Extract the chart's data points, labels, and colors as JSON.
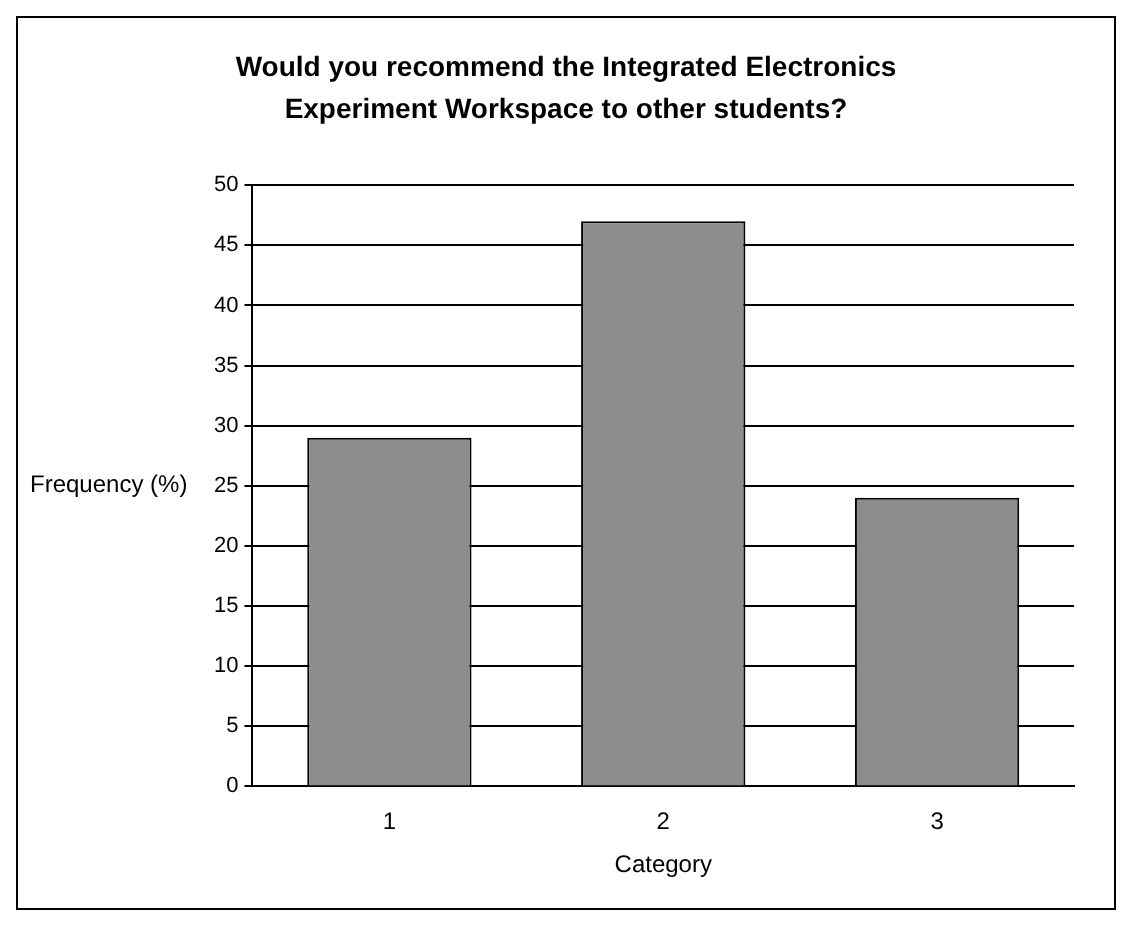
{
  "chart_data": {
    "type": "bar",
    "title": "Would you recommend the Integrated Electronics Experiment Workspace to other students?",
    "xlabel": "Category",
    "ylabel": "Frequency (%)",
    "categories": [
      "1",
      "2",
      "3"
    ],
    "values": [
      29,
      47,
      24
    ],
    "color": "#8c8c8c",
    "ylim": [
      0,
      50
    ],
    "yticks": [
      0,
      5,
      10,
      15,
      20,
      25,
      30,
      35,
      40,
      45,
      50
    ],
    "grid": "y"
  }
}
